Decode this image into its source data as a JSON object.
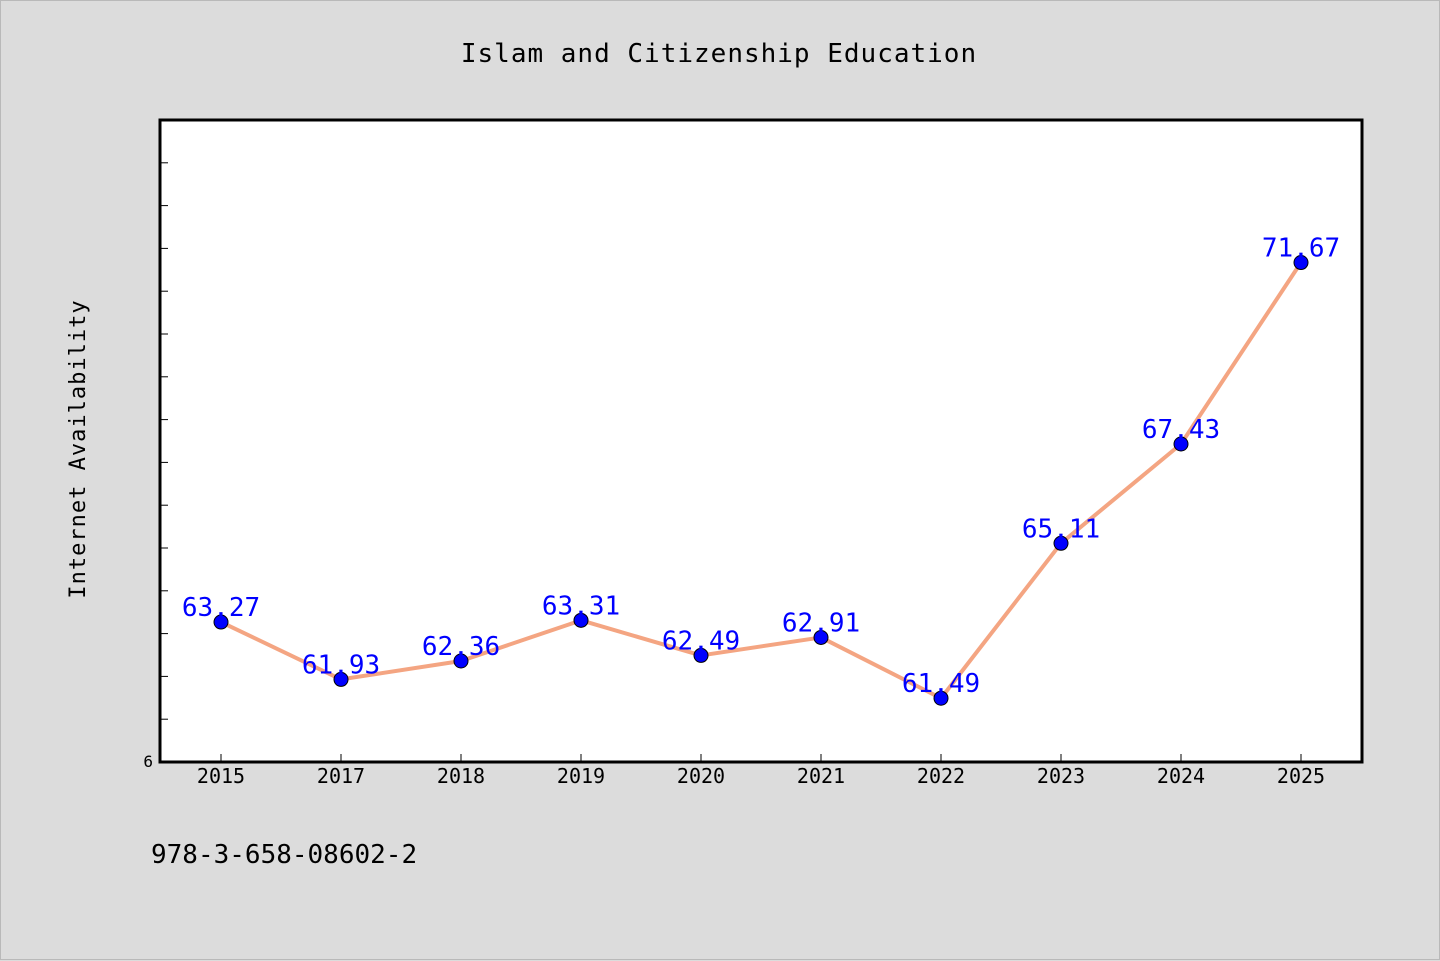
{
  "chart_data": {
    "type": "line",
    "title": "Islam and Citizenship Education",
    "xlabel": "",
    "ylabel": "Internet Availability",
    "categories": [
      "2015",
      "2017",
      "2018",
      "2019",
      "2020",
      "2021",
      "2022",
      "2023",
      "2024",
      "2025"
    ],
    "series": [
      {
        "values": [
          63.27,
          61.93,
          62.36,
          63.31,
          62.49,
          62.91,
          61.49,
          65.11,
          67.43,
          71.67
        ],
        "labels": [
          "63.27",
          "61.93",
          "62.36",
          "63.31",
          "62.49",
          "62.91",
          "61.49",
          "65.11",
          "67.43",
          "71.67"
        ],
        "line_color": "#f4a582",
        "marker_color": "#0000ff"
      }
    ],
    "y_axis_visible_label": "6",
    "ylim": [
      60,
      75
    ],
    "grid": false,
    "legend": "none",
    "label_color": "#0000ff",
    "plot_background": "#ffffff",
    "figure_background": "#dcdcdc"
  },
  "footer": {
    "text": "978-3-658-08602-2"
  }
}
